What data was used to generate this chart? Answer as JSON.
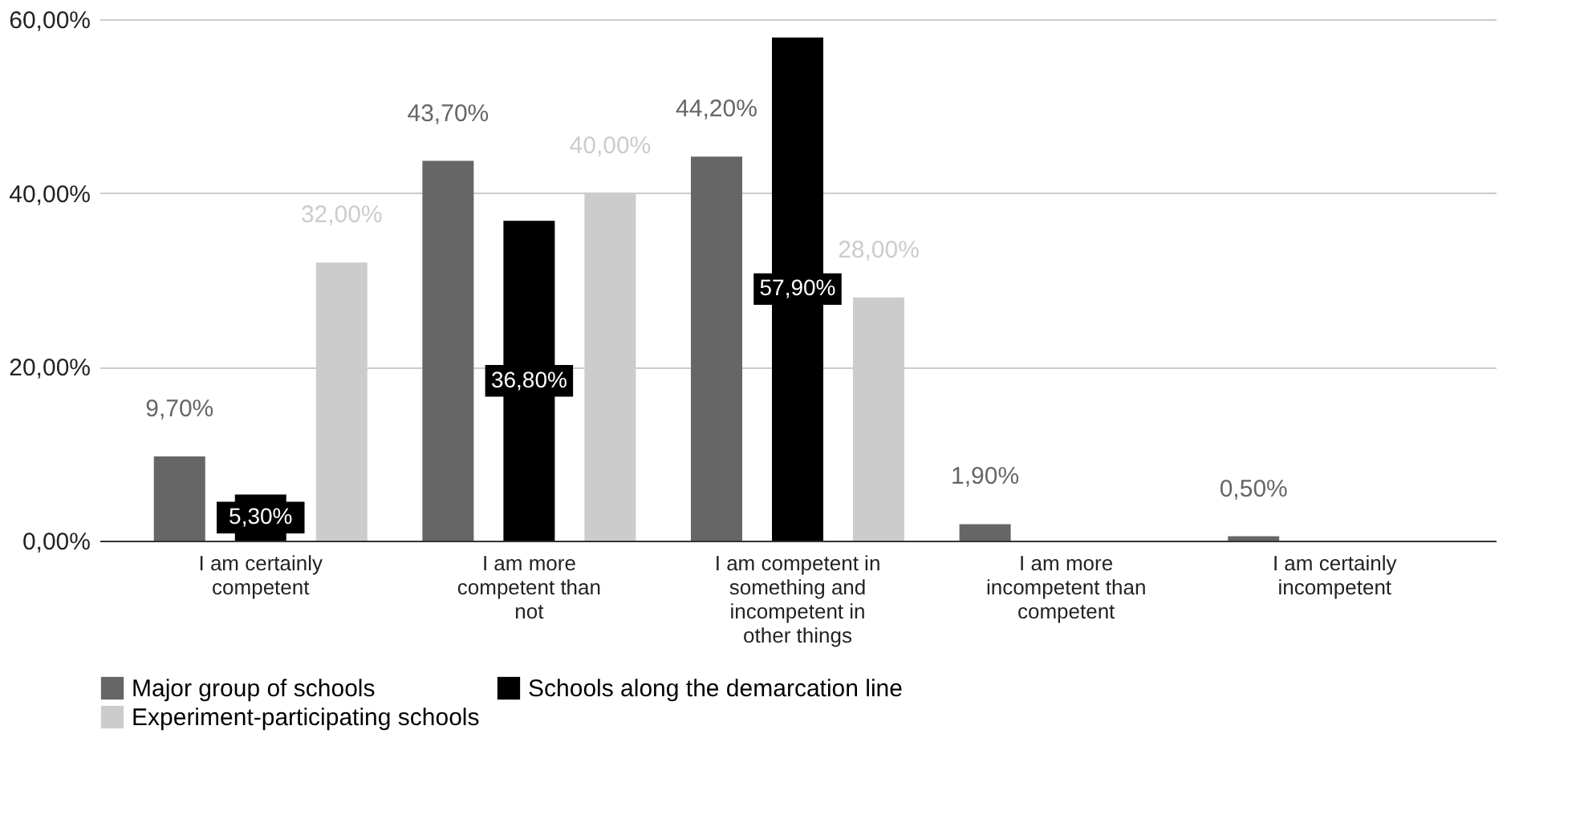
{
  "chart_data": {
    "type": "bar",
    "categories": [
      "I am certainly competent",
      "I am more competent than not",
      "I am competent in something and incompetent in other things",
      "I am more incompetent than competent",
      "I am certainly incompetent"
    ],
    "series": [
      {
        "name": "Major group of schools",
        "color": "#666666",
        "values": [
          9.7,
          43.7,
          44.2,
          1.9,
          0.5
        ],
        "value_labels": [
          "9,70%",
          "43,70%",
          "44,20%",
          "1,90%",
          "0,50%"
        ]
      },
      {
        "name": "Schools along the demarcation line",
        "color": "#000000",
        "values": [
          5.3,
          36.8,
          57.9,
          null,
          null
        ],
        "value_labels": [
          "5,30%",
          "36,80%",
          "57,90%",
          null,
          null
        ]
      },
      {
        "name": "Experiment-participating schools",
        "color": "#cccccc",
        "values": [
          32.0,
          40.0,
          28.0,
          null,
          null
        ],
        "value_labels": [
          "32,00%",
          "40,00%",
          "28,00%",
          null,
          null
        ]
      }
    ],
    "ylim": [
      0,
      60
    ],
    "yticks": [
      {
        "value": 0,
        "label": "0,00%"
      },
      {
        "value": 20,
        "label": "20,00%"
      },
      {
        "value": 40,
        "label": "40,00%"
      },
      {
        "value": 60,
        "label": "60,00%"
      }
    ],
    "grid": "y",
    "legend": "bottom"
  }
}
